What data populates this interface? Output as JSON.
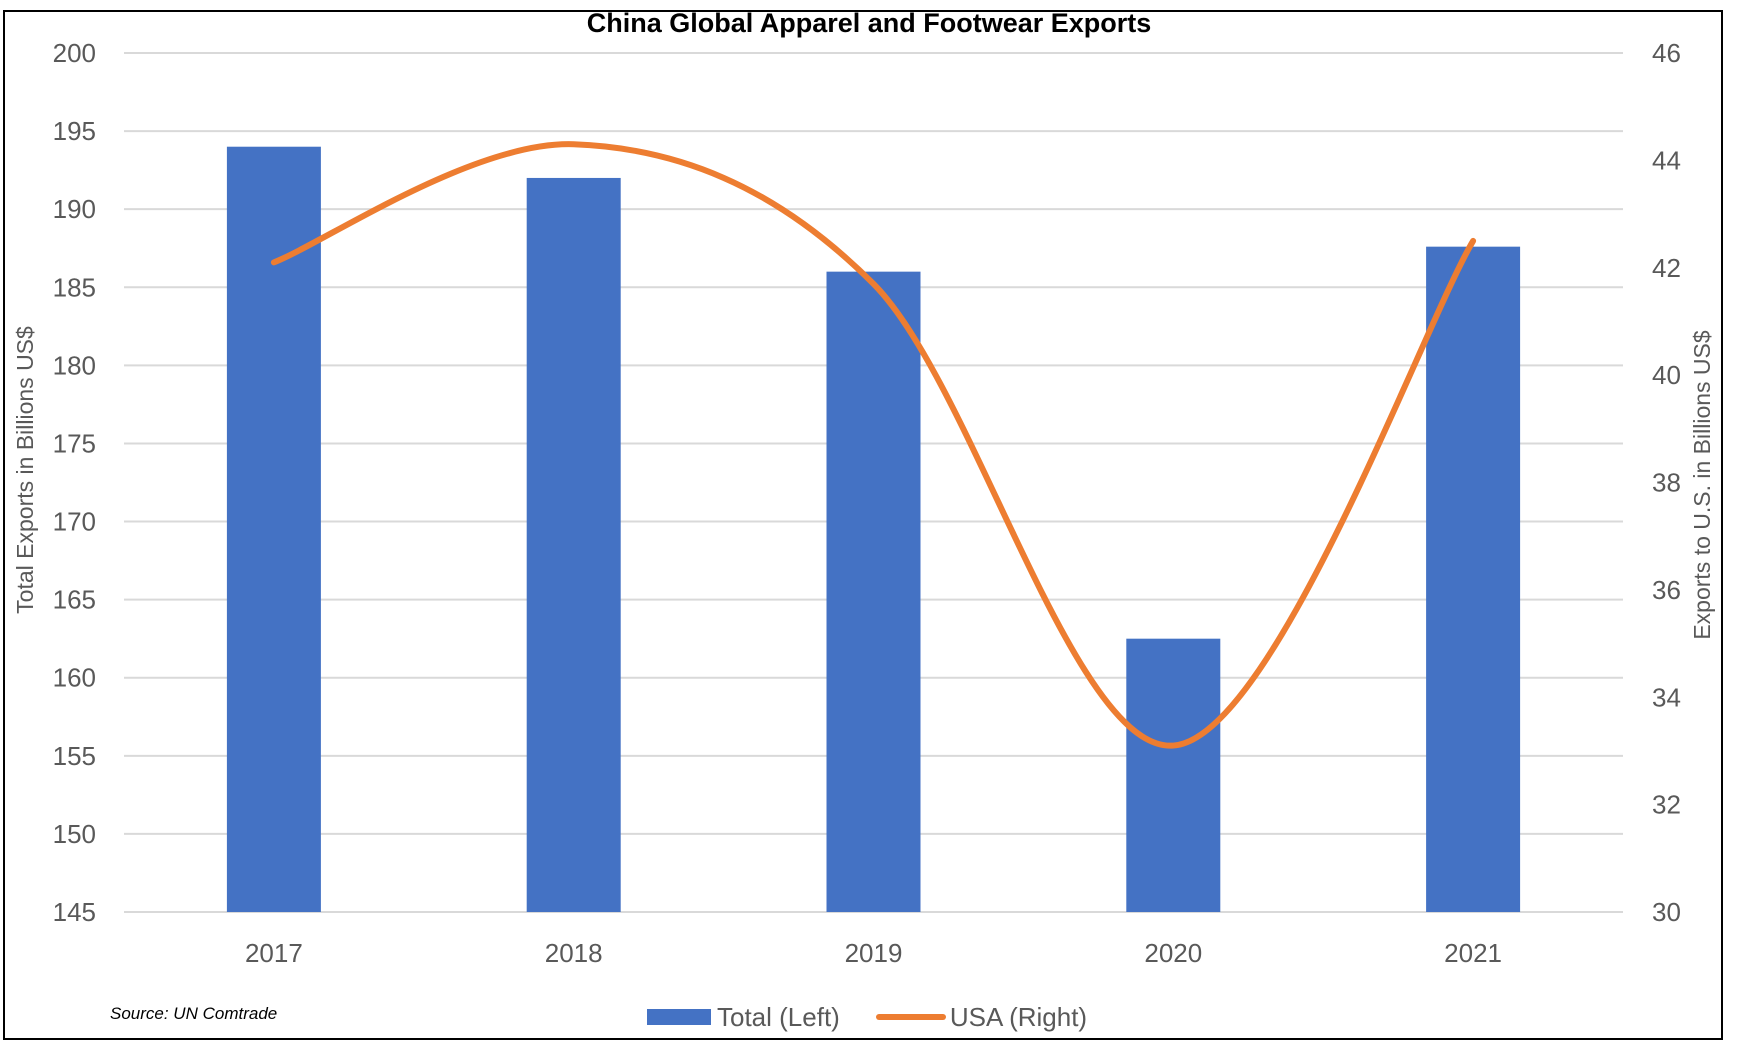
{
  "chart_data": {
    "type": "bar",
    "title": "China Global Apparel and Footwear Exports",
    "categories": [
      "2017",
      "2018",
      "2019",
      "2020",
      "2021"
    ],
    "series": [
      {
        "name": "Total (Left)",
        "type": "bar",
        "axis": "left",
        "color": "#4472C4",
        "values": [
          194.0,
          192.0,
          186.0,
          162.5,
          187.6
        ]
      },
      {
        "name": "USA (Right)",
        "type": "line",
        "smooth": true,
        "axis": "right",
        "color": "#ED7D31",
        "values": [
          42.1,
          44.3,
          41.7,
          33.1,
          42.5
        ]
      }
    ],
    "ylabel": "Total Exports in Billions US$",
    "y2label": "Exports to U.S. in Billions US$",
    "xlabel": "",
    "ylim": [
      145,
      200
    ],
    "yticks": [
      200,
      195,
      190,
      185,
      180,
      175,
      170,
      165,
      160,
      155,
      150,
      145
    ],
    "y2lim": [
      30,
      46
    ],
    "y2ticks": [
      46,
      44,
      42,
      40,
      38,
      36,
      34,
      32,
      30
    ],
    "grid": true,
    "legend_position": "bottom"
  },
  "source_note": "Source: UN Comtrade",
  "legend": {
    "total_label": "Total (Left)",
    "usa_label": "USA (Right)"
  }
}
